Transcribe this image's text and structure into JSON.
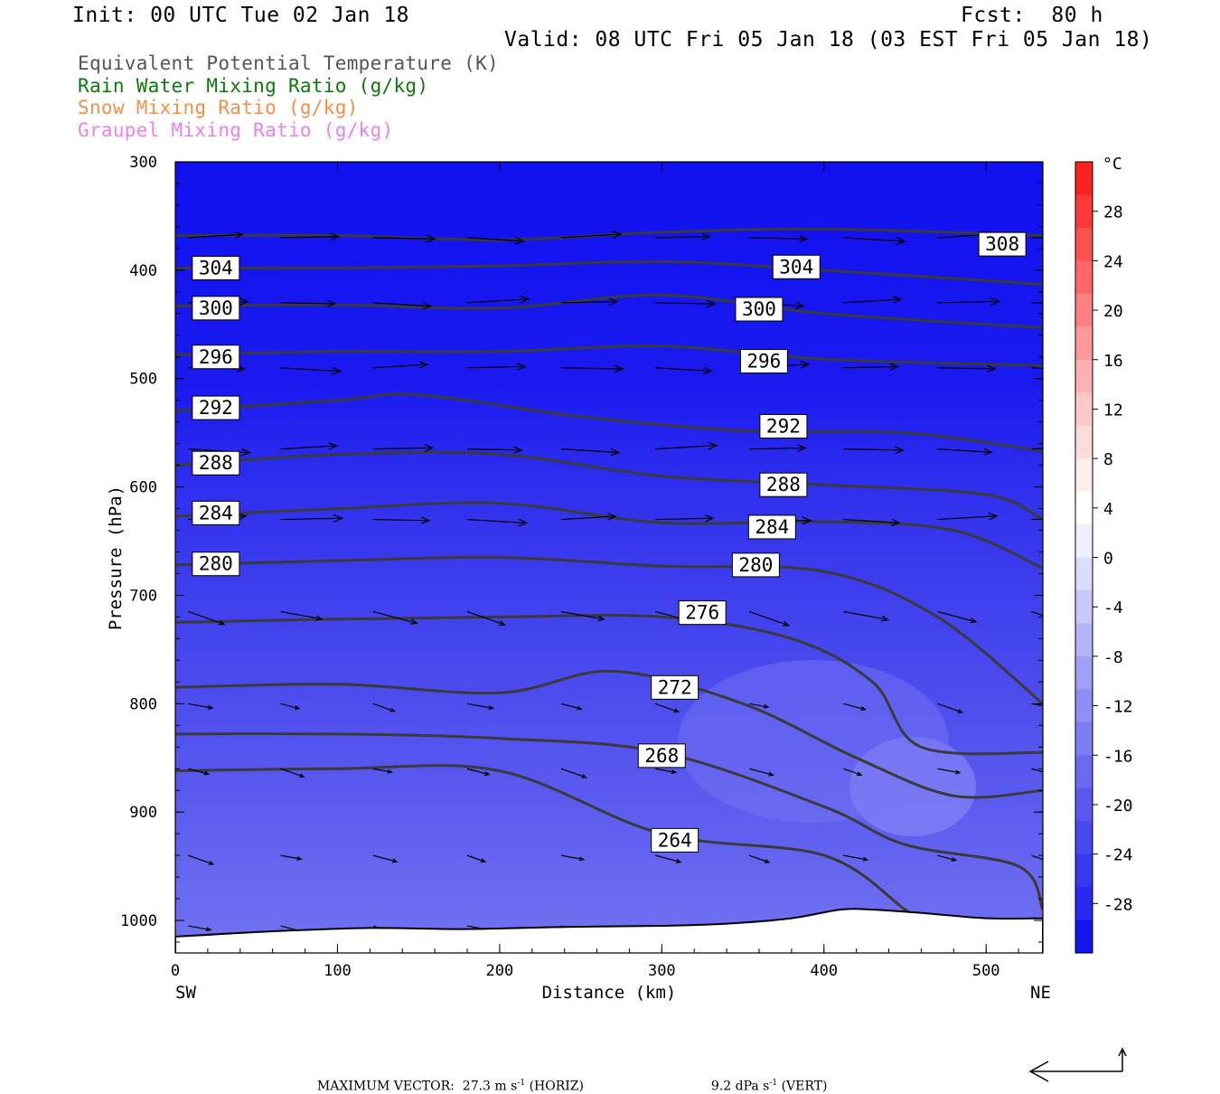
{
  "header": {
    "init": "Init: 00 UTC Tue 02 Jan 18",
    "fcst": "Fcst:  80 h",
    "valid": "Valid: 08 UTC Fri 05 Jan 18 (03 EST Fri 05 Jan 18)"
  },
  "legend": [
    {
      "text": "Equivalent Potential Temperature (K)",
      "color": "#555555"
    },
    {
      "text": "Rain Water Mixing Ratio (g/kg)",
      "color": "#0a7a0a"
    },
    {
      "text": "Snow Mixing Ratio (g/kg)",
      "color": "#f0904a"
    },
    {
      "text": "Graupel Mixing Ratio (g/kg)",
      "color": "#ee80ee"
    }
  ],
  "footer": {
    "max_vector_label": "MAXIMUM VECTOR:",
    "horiz": "27.3 m s",
    "horiz_exp": "-1",
    "horiz_tag": " (HORIZ)",
    "vert": "9.2 dPa s",
    "vert_exp": "-1",
    "vert_tag": " (VERT)"
  },
  "chart_data": {
    "type": "cross-section",
    "xlabel": "Distance (km)",
    "ylabel": "Pressure (hPa)",
    "x_ticks": [
      0,
      100,
      200,
      300,
      400,
      500
    ],
    "xlim": [
      0,
      535
    ],
    "y_ticks": [
      300,
      400,
      500,
      600,
      700,
      800,
      900,
      1000
    ],
    "ylim": [
      1030,
      300
    ],
    "left_end": "SW",
    "right_end": "NE",
    "colorbar": {
      "unit": "°C",
      "ticks": [
        28,
        24,
        20,
        16,
        12,
        8,
        4,
        0,
        -4,
        -8,
        -12,
        -16,
        -20,
        -24,
        -28
      ],
      "range": [
        -32,
        32
      ],
      "colors_cold": [
        "#1414f0",
        "#2828f0",
        "#3838f0",
        "#4848f0",
        "#5858f0",
        "#6a6af2",
        "#7c7cf4",
        "#8e8ef6",
        "#a0a0f8",
        "#b4b4fa",
        "#c8c8fc",
        "#dcdcfd",
        "#eeeefe",
        "#ffffff"
      ],
      "colors_warm": [
        "#ffeeee",
        "#ffdcdc",
        "#ffc8c8",
        "#ffb0b0",
        "#ff9898",
        "#ff8080",
        "#ff6868",
        "#ff5050",
        "#ff3838",
        "#ff2020"
      ]
    },
    "theta_e_contours": [
      {
        "value": 308,
        "x": [
          0,
          100,
          200,
          300,
          400,
          535
        ],
        "p": [
          368,
          368,
          372,
          365,
          362,
          368
        ]
      },
      {
        "value": 304,
        "x": [
          0,
          100,
          200,
          300,
          400,
          535
        ],
        "p": [
          398,
          398,
          396,
          392,
          400,
          413
        ]
      },
      {
        "value": 300,
        "x": [
          0,
          100,
          200,
          300,
          400,
          535
        ],
        "p": [
          433,
          432,
          435,
          423,
          440,
          453
        ]
      },
      {
        "value": 296,
        "x": [
          0,
          100,
          200,
          300,
          400,
          535
        ],
        "p": [
          478,
          475,
          475,
          470,
          482,
          488
        ]
      },
      {
        "value": 292,
        "x": [
          0,
          100,
          150,
          250,
          350,
          450,
          535
        ],
        "p": [
          530,
          520,
          515,
          535,
          548,
          550,
          567
        ]
      },
      {
        "value": 288,
        "x": [
          0,
          100,
          200,
          300,
          400,
          500,
          535
        ],
        "p": [
          580,
          570,
          570,
          590,
          598,
          607,
          630
        ]
      },
      {
        "value": 284,
        "x": [
          0,
          100,
          200,
          300,
          400,
          480,
          535
        ],
        "p": [
          627,
          620,
          615,
          633,
          632,
          640,
          675
        ]
      },
      {
        "value": 280,
        "x": [
          0,
          100,
          200,
          300,
          400,
          470,
          535
        ],
        "p": [
          672,
          668,
          665,
          673,
          678,
          720,
          800
        ]
      },
      {
        "value": 276,
        "x": [
          0,
          100,
          200,
          300,
          380,
          430,
          460,
          535
        ],
        "p": [
          725,
          722,
          720,
          720,
          740,
          780,
          840,
          845
        ]
      },
      {
        "value": 272,
        "x": [
          0,
          100,
          200,
          270,
          350,
          420,
          480,
          535
        ],
        "p": [
          785,
          782,
          790,
          770,
          800,
          850,
          885,
          880
        ]
      },
      {
        "value": 268,
        "x": [
          0,
          100,
          200,
          300,
          400,
          450,
          520,
          535
        ],
        "p": [
          828,
          828,
          832,
          845,
          895,
          930,
          950,
          990
        ]
      },
      {
        "value": 264,
        "x": [
          0,
          100,
          200,
          300,
          400,
          450,
          460
        ],
        "p": [
          862,
          860,
          862,
          920,
          940,
          990,
          1000
        ]
      }
    ],
    "contour_labels": [
      {
        "text": "308",
        "x": 510,
        "p": 376
      },
      {
        "text": "304",
        "x": 25,
        "p": 398
      },
      {
        "text": "304",
        "x": 383,
        "p": 397
      },
      {
        "text": "300",
        "x": 25,
        "p": 435
      },
      {
        "text": "300",
        "x": 360,
        "p": 436
      },
      {
        "text": "296",
        "x": 25,
        "p": 480
      },
      {
        "text": "296",
        "x": 363,
        "p": 484
      },
      {
        "text": "292",
        "x": 25,
        "p": 527
      },
      {
        "text": "292",
        "x": 375,
        "p": 544
      },
      {
        "text": "288",
        "x": 25,
        "p": 578
      },
      {
        "text": "288",
        "x": 375,
        "p": 598
      },
      {
        "text": "284",
        "x": 25,
        "p": 624
      },
      {
        "text": "284",
        "x": 368,
        "p": 637
      },
      {
        "text": "280",
        "x": 25,
        "p": 671
      },
      {
        "text": "280",
        "x": 358,
        "p": 672
      },
      {
        "text": "276",
        "x": 325,
        "p": 716
      },
      {
        "text": "272",
        "x": 308,
        "p": 785
      },
      {
        "text": "268",
        "x": 300,
        "p": 848
      },
      {
        "text": "264",
        "x": 308,
        "p": 926
      }
    ],
    "wind_levels": [
      370,
      430,
      490,
      565,
      630,
      715,
      800,
      860,
      940,
      1005
    ],
    "wind_x": [
      8,
      65,
      122,
      180,
      238,
      296,
      354,
      412,
      470,
      528
    ],
    "terrain": {
      "x": [
        0,
        60,
        120,
        180,
        240,
        300,
        340,
        380,
        410,
        430,
        460,
        500,
        535
      ],
      "p": [
        1015,
        1010,
        1007,
        1008,
        1006,
        1005,
        1003,
        998,
        990,
        990,
        993,
        998,
        998
      ]
    }
  }
}
